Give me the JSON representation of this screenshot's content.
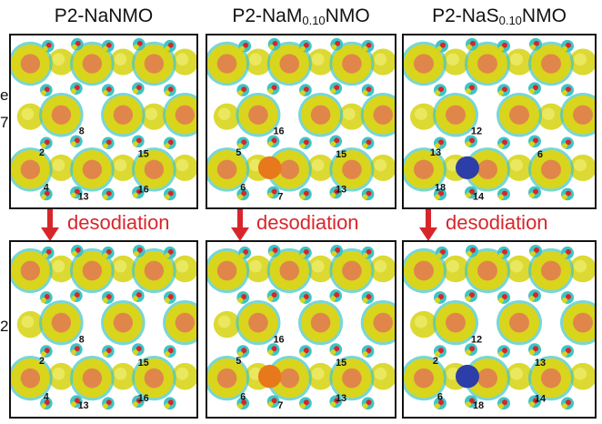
{
  "columns": [
    {
      "base": "P2-NaNMO",
      "sub": "",
      "tail": ""
    },
    {
      "base": "P2-NaM",
      "sub": "0.10",
      "tail": "NMO"
    },
    {
      "base": "P2-NaS",
      "sub": "0.10",
      "tail": "NMO"
    }
  ],
  "arrow_label": "desodiation",
  "left_edge_fragments": [
    "e",
    "7",
    "2"
  ],
  "colors": {
    "isosurface_yellow": "#d8d51c",
    "isosurface_cyan": "#3fc4c4",
    "core_orange": "#e1864a",
    "oxygen_red": "#d7262b",
    "dopant_orange": "#e7781c",
    "dopant_blue": "#2d3ea8",
    "arrow_red": "#d7262b"
  },
  "panels": [
    {
      "id": "a-before",
      "labels": [
        "8",
        "2",
        "15",
        "4",
        "13",
        "16"
      ],
      "dopant": "none"
    },
    {
      "id": "b-before",
      "labels": [
        "16",
        "5",
        "15",
        "6",
        "7",
        "13"
      ],
      "dopant": "orange"
    },
    {
      "id": "c-before",
      "labels": [
        "12",
        "13",
        "6",
        "18",
        "14"
      ],
      "dopant": "blue"
    },
    {
      "id": "a-after",
      "labels": [
        "8",
        "2",
        "15",
        "4",
        "13",
        "16"
      ],
      "dopant": "none"
    },
    {
      "id": "b-after",
      "labels": [
        "16",
        "5",
        "15",
        "6",
        "7",
        "13"
      ],
      "dopant": "orange"
    },
    {
      "id": "c-after",
      "labels": [
        "12",
        "2",
        "13",
        "6",
        "18",
        "14"
      ],
      "dopant": "blue"
    }
  ]
}
